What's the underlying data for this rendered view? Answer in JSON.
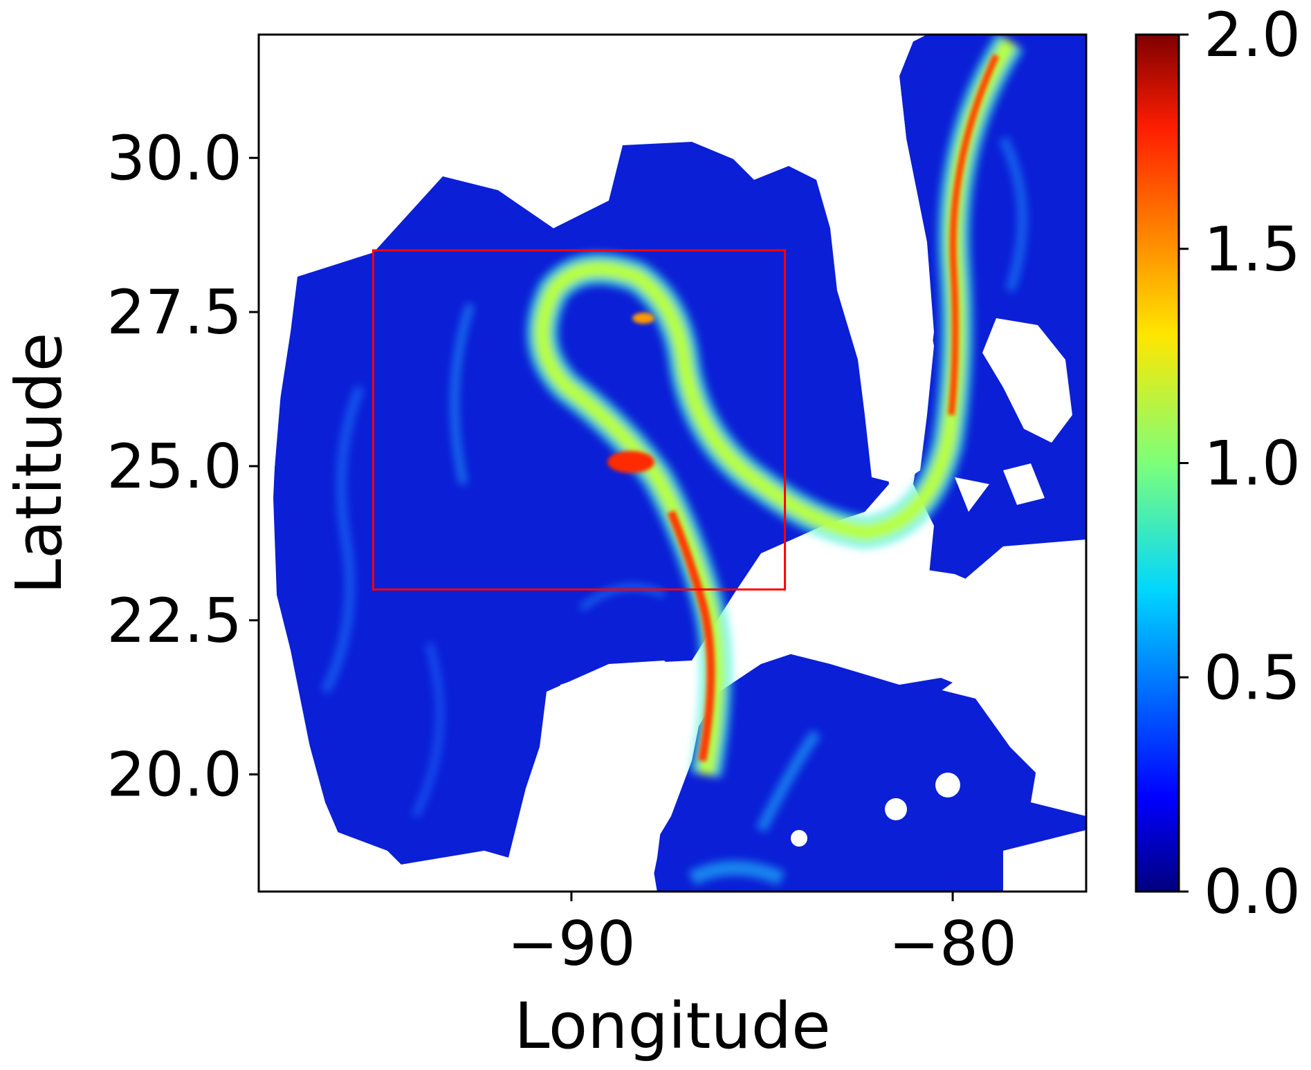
{
  "chart_data": {
    "type": "heatmap",
    "title": "",
    "xlabel": "Longitude",
    "ylabel": "Latitude",
    "xlim": [
      -98.2,
      -76.5
    ],
    "ylim": [
      18.1,
      32.0
    ],
    "xticks": [
      {
        "value": -90,
        "label": "−90"
      },
      {
        "value": -80,
        "label": "−80"
      }
    ],
    "yticks": [
      {
        "value": 20.0,
        "label": "20.0"
      },
      {
        "value": 22.5,
        "label": "22.5"
      },
      {
        "value": 25.0,
        "label": "25.0"
      },
      {
        "value": 27.5,
        "label": "27.5"
      },
      {
        "value": 30.0,
        "label": "30.0"
      }
    ],
    "colorbar": {
      "colormap": "jet",
      "range": [
        0.0,
        2.0
      ],
      "ticks": [
        "0.0",
        "0.5",
        "1.0",
        "1.5",
        "2.0"
      ]
    },
    "region_box": {
      "lon": [
        -95.2,
        -84.4
      ],
      "lat": [
        23.0,
        28.5
      ],
      "color": "#ff0000"
    },
    "grid": false,
    "land_color": "#ffffff"
  }
}
